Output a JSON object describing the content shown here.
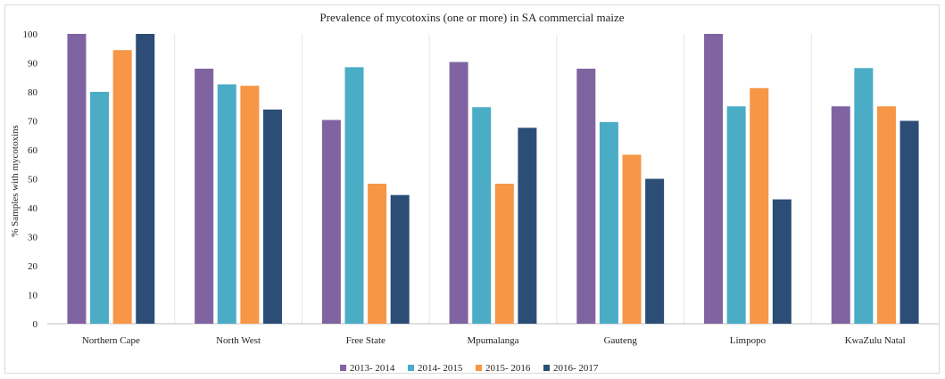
{
  "chart_data": {
    "type": "bar",
    "title": "Prevalence of mycotoxins (one or more) in SA commercial maize",
    "xlabel": "",
    "ylabel": "% Samples with mycotoxins",
    "ylim": [
      0,
      100
    ],
    "yticks": [
      0,
      10,
      20,
      30,
      40,
      50,
      60,
      70,
      80,
      90,
      100
    ],
    "grid": false,
    "legend_position": "bottom",
    "categories": [
      "Northern Cape",
      "North West",
      "Free State",
      "Mpumalanga",
      "Gauteng",
      "Limpopo",
      "KwaZulu Natal"
    ],
    "series": [
      {
        "name": "2013- 2014",
        "color": "#8064a2",
        "values": [
          100,
          88,
          70.3,
          90.3,
          88,
          100,
          75
        ]
      },
      {
        "name": "2014- 2015",
        "color": "#4bacc6",
        "values": [
          80,
          82.6,
          88.5,
          74.7,
          69.6,
          75,
          88.2
        ]
      },
      {
        "name": "2015- 2016",
        "color": "#f79646",
        "values": [
          94.4,
          82.1,
          48.3,
          48.3,
          58.3,
          81.3,
          75
        ]
      },
      {
        "name": "2016- 2017",
        "color": "#2c4d75",
        "values": [
          100,
          73.9,
          44.4,
          67.6,
          50,
          42.9,
          70
        ]
      }
    ]
  }
}
